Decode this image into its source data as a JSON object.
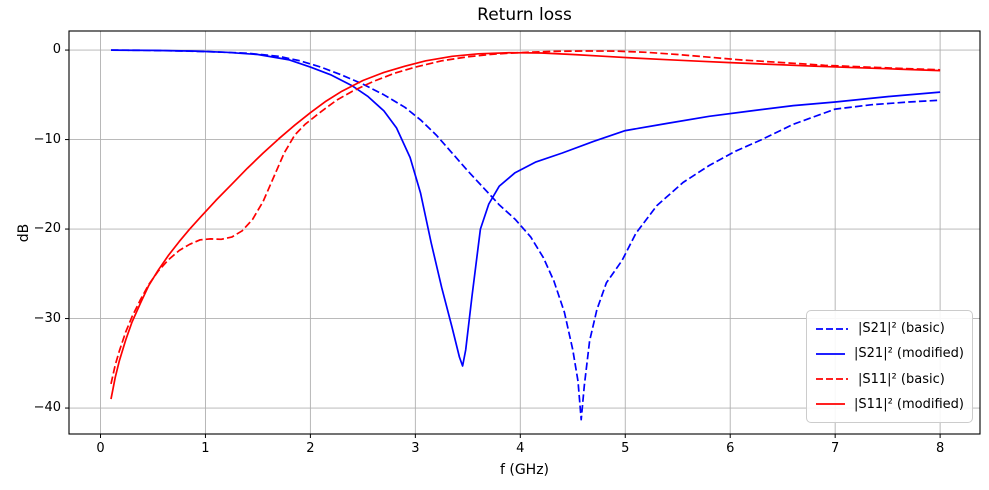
{
  "figure": {
    "title": "Return loss",
    "xlabel": "f (GHz)",
    "ylabel": "dB"
  },
  "legend": {
    "items": [
      {
        "label": "|S21|² (basic)",
        "color": "#0000ff",
        "dashed": true
      },
      {
        "label": "|S21|² (modified)",
        "color": "#0000ff",
        "dashed": false
      },
      {
        "label": "|S11|² (basic)",
        "color": "#ff0000",
        "dashed": true
      },
      {
        "label": "|S11|² (modified)",
        "color": "#ff0000",
        "dashed": false
      }
    ]
  },
  "chart_data": {
    "type": "line",
    "title": "Return loss",
    "xlabel": "f (GHz)",
    "ylabel": "dB",
    "xlim": [
      -0.3,
      8.38
    ],
    "ylim": [
      -42.9,
      2.13
    ],
    "grid": true,
    "grid_color": "#b0b0b0",
    "axis_color": "#000000",
    "legend_position": "lower right",
    "x_tick_values": [
      0,
      1,
      2,
      3,
      4,
      5,
      6,
      7,
      8
    ],
    "x_tick_labels": [
      "0",
      "1",
      "2",
      "3",
      "4",
      "5",
      "6",
      "7",
      "8"
    ],
    "y_tick_values": [
      0,
      -10,
      -20,
      -30,
      -40
    ],
    "y_tick_labels": [
      "0",
      "−10",
      "−20",
      "−30",
      "−40"
    ],
    "series": [
      {
        "name": "|S21|² (basic)",
        "color": "#0000ff",
        "style": "dashed",
        "x": [
          0.1,
          0.4,
          0.8,
          1.1,
          1.4,
          1.7,
          1.9,
          2.1,
          2.3,
          2.5,
          2.7,
          2.9,
          3.05,
          3.2,
          3.35,
          3.5,
          3.65,
          3.8,
          3.95,
          4.1,
          4.22,
          4.32,
          4.42,
          4.5,
          4.55,
          4.58,
          4.61,
          4.66,
          4.73,
          4.82,
          4.97,
          5.1,
          5.3,
          5.55,
          5.8,
          6.05,
          6.3,
          6.6,
          7.0,
          7.35,
          7.7,
          8.0
        ],
        "y": [
          0.0,
          -0.03,
          -0.1,
          -0.2,
          -0.35,
          -0.7,
          -1.2,
          -1.9,
          -2.8,
          -3.8,
          -5.0,
          -6.4,
          -7.8,
          -9.5,
          -11.5,
          -13.5,
          -15.4,
          -17.3,
          -18.9,
          -20.9,
          -23.2,
          -25.8,
          -29.3,
          -33.5,
          -37.0,
          -41.3,
          -37.5,
          -32.5,
          -29.0,
          -26.0,
          -23.5,
          -20.5,
          -17.4,
          -14.8,
          -12.9,
          -11.3,
          -10.0,
          -8.3,
          -6.6,
          -6.1,
          -5.8,
          -5.6
        ]
      },
      {
        "name": "|S21|² (modified)",
        "color": "#0000ff",
        "style": "solid",
        "x": [
          0.1,
          0.5,
          0.9,
          1.2,
          1.5,
          1.8,
          2.0,
          2.2,
          2.4,
          2.55,
          2.7,
          2.82,
          2.95,
          3.05,
          3.15,
          3.25,
          3.35,
          3.42,
          3.45,
          3.48,
          3.54,
          3.62,
          3.7,
          3.8,
          3.95,
          4.15,
          4.4,
          4.7,
          5.0,
          5.4,
          5.8,
          6.2,
          6.6,
          7.0,
          7.5,
          8.0
        ],
        "y": [
          0.0,
          -0.04,
          -0.12,
          -0.25,
          -0.5,
          -1.1,
          -1.9,
          -2.8,
          -4.0,
          -5.2,
          -6.8,
          -8.7,
          -12.0,
          -16.0,
          -21.5,
          -26.5,
          -31.0,
          -34.3,
          -35.3,
          -33.5,
          -27.5,
          -20.0,
          -17.2,
          -15.2,
          -13.7,
          -12.5,
          -11.5,
          -10.2,
          -9.0,
          -8.2,
          -7.4,
          -6.8,
          -6.2,
          -5.8,
          -5.2,
          -4.7
        ]
      },
      {
        "name": "|S11|² (basic)",
        "color": "#ff0000",
        "style": "dashed",
        "x": [
          0.1,
          0.14,
          0.18,
          0.24,
          0.3,
          0.38,
          0.46,
          0.55,
          0.65,
          0.75,
          0.85,
          0.95,
          1.05,
          1.15,
          1.25,
          1.35,
          1.45,
          1.55,
          1.65,
          1.75,
          1.85,
          1.95,
          2.1,
          2.25,
          2.4,
          2.6,
          2.8,
          3.0,
          3.25,
          3.5,
          3.75,
          4.0,
          4.3,
          4.6,
          4.9,
          5.2,
          5.5,
          5.8,
          6.1,
          6.5,
          6.9,
          7.4,
          8.0
        ],
        "y": [
          -37.3,
          -35.2,
          -33.6,
          -31.5,
          -29.8,
          -27.9,
          -26.2,
          -24.7,
          -23.4,
          -22.4,
          -21.7,
          -21.2,
          -21.1,
          -21.15,
          -20.9,
          -20.2,
          -18.9,
          -16.9,
          -14.2,
          -11.5,
          -9.5,
          -8.3,
          -6.9,
          -5.6,
          -4.6,
          -3.5,
          -2.6,
          -1.9,
          -1.2,
          -0.75,
          -0.45,
          -0.28,
          -0.15,
          -0.1,
          -0.12,
          -0.25,
          -0.5,
          -0.8,
          -1.1,
          -1.4,
          -1.7,
          -1.95,
          -2.2
        ]
      },
      {
        "name": "|S11|² (modified)",
        "color": "#ff0000",
        "style": "solid",
        "x": [
          0.1,
          0.14,
          0.18,
          0.24,
          0.3,
          0.38,
          0.46,
          0.55,
          0.65,
          0.75,
          0.85,
          0.95,
          1.1,
          1.25,
          1.4,
          1.55,
          1.7,
          1.85,
          2.0,
          2.15,
          2.3,
          2.5,
          2.7,
          2.9,
          3.1,
          3.35,
          3.6,
          3.9,
          4.2,
          4.5,
          4.8,
          5.1,
          5.4,
          5.7,
          6.0,
          6.4,
          6.8,
          7.2,
          7.6,
          8.0
        ],
        "y": [
          -39.0,
          -36.6,
          -34.7,
          -32.4,
          -30.4,
          -28.3,
          -26.3,
          -24.6,
          -22.9,
          -21.4,
          -20.0,
          -18.7,
          -16.8,
          -15.0,
          -13.2,
          -11.5,
          -9.9,
          -8.4,
          -7.0,
          -5.7,
          -4.6,
          -3.4,
          -2.5,
          -1.8,
          -1.2,
          -0.7,
          -0.42,
          -0.3,
          -0.33,
          -0.5,
          -0.7,
          -0.9,
          -1.08,
          -1.25,
          -1.4,
          -1.6,
          -1.8,
          -1.97,
          -2.13,
          -2.3
        ]
      }
    ]
  }
}
